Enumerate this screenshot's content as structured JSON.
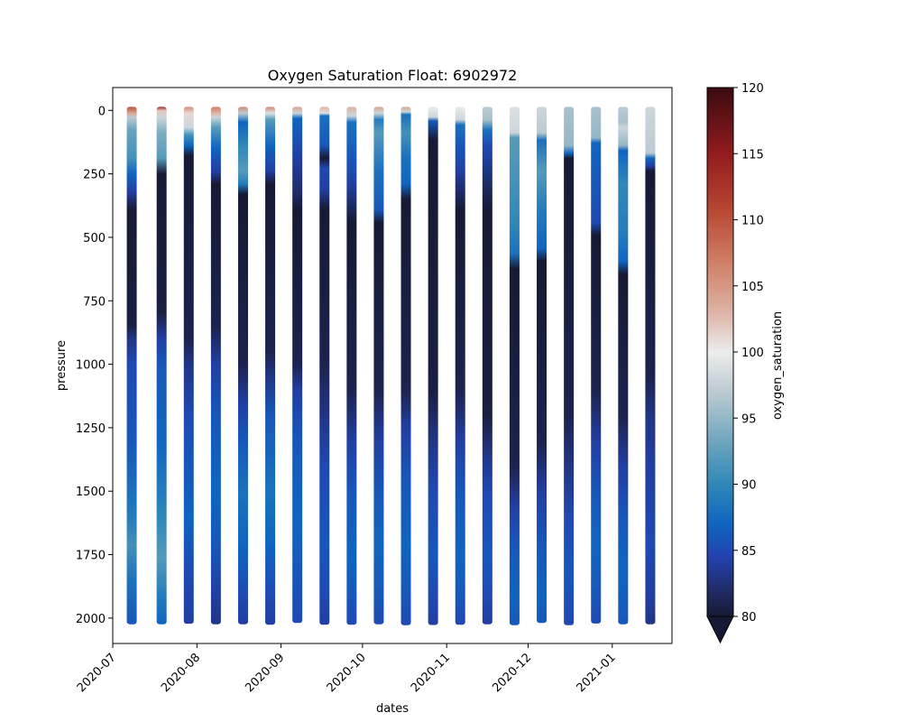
{
  "chart_data": {
    "type": "scatter",
    "title": "Oxygen Saturation Float: 6902972",
    "xlabel": "dates",
    "ylabel": "pressure",
    "colorbar_label": "oxygen_saturation",
    "xlim": [
      "2020-07-01",
      "2021-01-23"
    ],
    "ylim": [
      2100,
      -90
    ],
    "y_inverted": true,
    "x_ticks": [
      "2020-07-01",
      "2020-08-01",
      "2020-09-01",
      "2020-10-01",
      "2020-11-01",
      "2020-12-01",
      "2021-01-01"
    ],
    "x_tick_labels": [
      "2020-07",
      "2020-08",
      "2020-09",
      "2020-10",
      "2020-11",
      "2020-12",
      "2021-01"
    ],
    "y_ticks": [
      0,
      250,
      500,
      750,
      1000,
      1250,
      1500,
      1750,
      2000
    ],
    "colorbar_ticks": [
      80,
      85,
      90,
      95,
      100,
      105,
      110,
      115,
      120
    ],
    "color_range": [
      80,
      120
    ],
    "colorbar_extend": "min",
    "colormap_stops": [
      {
        "v": 80,
        "color": "#161a34"
      },
      {
        "v": 82,
        "color": "#202c68"
      },
      {
        "v": 84.5,
        "color": "#2342b0"
      },
      {
        "v": 87,
        "color": "#0f65c0"
      },
      {
        "v": 90,
        "color": "#2f88b8"
      },
      {
        "v": 93,
        "color": "#6aa3bd"
      },
      {
        "v": 97,
        "color": "#bccbd2"
      },
      {
        "v": 100,
        "color": "#ececec"
      },
      {
        "v": 103,
        "color": "#deb3a5"
      },
      {
        "v": 107,
        "color": "#cf7c63"
      },
      {
        "v": 111,
        "color": "#b54430"
      },
      {
        "v": 115,
        "color": "#921b1e"
      },
      {
        "v": 120,
        "color": "#3a0b0f"
      }
    ],
    "profiles": [
      {
        "date": "2020-07-08",
        "max_pressure": 2010,
        "levels": [
          [
            0,
            110
          ],
          [
            25,
            104
          ],
          [
            40,
            97
          ],
          [
            90,
            93
          ],
          [
            200,
            91
          ],
          [
            260,
            87
          ],
          [
            330,
            84
          ],
          [
            400,
            80
          ],
          [
            850,
            80.5
          ],
          [
            900,
            83
          ],
          [
            1000,
            85
          ],
          [
            1300,
            86
          ],
          [
            1500,
            88
          ],
          [
            1600,
            89
          ],
          [
            1700,
            91
          ],
          [
            1850,
            88
          ],
          [
            2010,
            86
          ]
        ]
      },
      {
        "date": "2020-07-19",
        "max_pressure": 2010,
        "levels": [
          [
            0,
            114
          ],
          [
            15,
            102
          ],
          [
            40,
            98
          ],
          [
            100,
            94
          ],
          [
            200,
            92
          ],
          [
            260,
            80
          ],
          [
            800,
            80.5
          ],
          [
            900,
            84
          ],
          [
            1000,
            86
          ],
          [
            1300,
            87
          ],
          [
            1400,
            88
          ],
          [
            1600,
            90
          ],
          [
            1750,
            92
          ],
          [
            1900,
            89
          ],
          [
            2010,
            87
          ]
        ]
      },
      {
        "date": "2020-07-29",
        "max_pressure": 2008,
        "levels": [
          [
            0,
            106
          ],
          [
            25,
            101
          ],
          [
            80,
            98
          ],
          [
            110,
            91
          ],
          [
            150,
            87
          ],
          [
            190,
            80
          ],
          [
            900,
            81
          ],
          [
            1000,
            83
          ],
          [
            1200,
            85
          ],
          [
            1400,
            86
          ],
          [
            1600,
            87
          ],
          [
            1800,
            85
          ],
          [
            2008,
            84
          ]
        ]
      },
      {
        "date": "2020-08-08",
        "max_pressure": 2010,
        "levels": [
          [
            0,
            107
          ],
          [
            25,
            103
          ],
          [
            40,
            98
          ],
          [
            80,
            92
          ],
          [
            160,
            87
          ],
          [
            250,
            84
          ],
          [
            300,
            80
          ],
          [
            850,
            81
          ],
          [
            1000,
            84
          ],
          [
            1200,
            86
          ],
          [
            1500,
            87
          ],
          [
            1700,
            86
          ],
          [
            1900,
            84
          ],
          [
            2010,
            83
          ]
        ]
      },
      {
        "date": "2020-08-18",
        "max_pressure": 2010,
        "levels": [
          [
            0,
            106
          ],
          [
            25,
            97
          ],
          [
            60,
            87
          ],
          [
            150,
            90
          ],
          [
            250,
            92
          ],
          [
            300,
            89
          ],
          [
            340,
            80
          ],
          [
            1000,
            81
          ],
          [
            1150,
            84
          ],
          [
            1300,
            86
          ],
          [
            1500,
            88
          ],
          [
            1700,
            87
          ],
          [
            1900,
            85
          ],
          [
            2010,
            84
          ]
        ]
      },
      {
        "date": "2020-08-28",
        "max_pressure": 2012,
        "levels": [
          [
            0,
            106
          ],
          [
            25,
            99
          ],
          [
            50,
            92
          ],
          [
            150,
            87
          ],
          [
            250,
            84
          ],
          [
            300,
            80
          ],
          [
            950,
            81
          ],
          [
            1050,
            83
          ],
          [
            1200,
            86
          ],
          [
            1500,
            88
          ],
          [
            1700,
            87
          ],
          [
            1900,
            85
          ],
          [
            2012,
            84
          ]
        ]
      },
      {
        "date": "2020-09-07",
        "max_pressure": 2005,
        "levels": [
          [
            0,
            104
          ],
          [
            25,
            98
          ],
          [
            45,
            87
          ],
          [
            200,
            84
          ],
          [
            330,
            82
          ],
          [
            400,
            80
          ],
          [
            1000,
            81
          ],
          [
            1100,
            84
          ],
          [
            1300,
            86
          ],
          [
            1600,
            87
          ],
          [
            1800,
            86
          ],
          [
            2005,
            85
          ]
        ]
      },
      {
        "date": "2020-09-17",
        "max_pressure": 2012,
        "levels": [
          [
            0,
            103
          ],
          [
            25,
            99
          ],
          [
            35,
            88
          ],
          [
            150,
            86
          ],
          [
            200,
            80
          ],
          [
            240,
            85
          ],
          [
            320,
            84
          ],
          [
            400,
            80
          ],
          [
            1000,
            81
          ],
          [
            1200,
            83
          ],
          [
            1400,
            85
          ],
          [
            1700,
            86
          ],
          [
            1900,
            85
          ],
          [
            2012,
            84
          ]
        ]
      },
      {
        "date": "2020-09-27",
        "max_pressure": 2012,
        "levels": [
          [
            0,
            103
          ],
          [
            35,
            98
          ],
          [
            60,
            88
          ],
          [
            200,
            86
          ],
          [
            300,
            84
          ],
          [
            450,
            80
          ],
          [
            1100,
            81
          ],
          [
            1300,
            84
          ],
          [
            1500,
            86
          ],
          [
            1750,
            87
          ],
          [
            1900,
            86
          ],
          [
            2012,
            85
          ]
        ]
      },
      {
        "date": "2020-10-07",
        "max_pressure": 2010,
        "levels": [
          [
            0,
            104
          ],
          [
            25,
            98
          ],
          [
            50,
            89
          ],
          [
            100,
            92
          ],
          [
            250,
            88
          ],
          [
            400,
            86
          ],
          [
            450,
            80
          ],
          [
            1100,
            81
          ],
          [
            1300,
            84
          ],
          [
            1500,
            86
          ],
          [
            1700,
            87
          ],
          [
            1900,
            86
          ],
          [
            2010,
            85
          ]
        ]
      },
      {
        "date": "2020-10-17",
        "max_pressure": 2014,
        "levels": [
          [
            0,
            104
          ],
          [
            20,
            98
          ],
          [
            30,
            88
          ],
          [
            100,
            91
          ],
          [
            200,
            88
          ],
          [
            300,
            87
          ],
          [
            360,
            80
          ],
          [
            1100,
            81
          ],
          [
            1250,
            84
          ],
          [
            1450,
            86
          ],
          [
            1700,
            87
          ],
          [
            1900,
            86
          ],
          [
            2014,
            85
          ]
        ]
      },
      {
        "date": "2020-10-27",
        "max_pressure": 2013,
        "levels": [
          [
            0,
            100
          ],
          [
            40,
            98
          ],
          [
            55,
            86
          ],
          [
            130,
            80
          ],
          [
            1100,
            80.5
          ],
          [
            1300,
            83
          ],
          [
            1500,
            85
          ],
          [
            1750,
            86
          ],
          [
            1900,
            85
          ],
          [
            2013,
            84
          ]
        ]
      },
      {
        "date": "2020-11-06",
        "max_pressure": 2012,
        "levels": [
          [
            0,
            100
          ],
          [
            50,
            98
          ],
          [
            70,
            88
          ],
          [
            150,
            86
          ],
          [
            250,
            84
          ],
          [
            400,
            80
          ],
          [
            1100,
            81
          ],
          [
            1300,
            84
          ],
          [
            1500,
            86
          ],
          [
            1750,
            87
          ],
          [
            1900,
            86
          ],
          [
            2012,
            85
          ]
        ]
      },
      {
        "date": "2020-11-16",
        "max_pressure": 2010,
        "levels": [
          [
            0,
            97
          ],
          [
            50,
            96
          ],
          [
            90,
            88
          ],
          [
            150,
            85
          ],
          [
            400,
            80
          ],
          [
            1200,
            80.5
          ],
          [
            1350,
            83
          ],
          [
            1500,
            85
          ],
          [
            1750,
            86
          ],
          [
            1900,
            85
          ],
          [
            2010,
            84
          ]
        ]
      },
      {
        "date": "2020-11-26",
        "max_pressure": 2014,
        "levels": [
          [
            0,
            99
          ],
          [
            100,
            98
          ],
          [
            120,
            92
          ],
          [
            300,
            91
          ],
          [
            450,
            90
          ],
          [
            570,
            88
          ],
          [
            630,
            80
          ],
          [
            1400,
            81
          ],
          [
            1550,
            84
          ],
          [
            1700,
            86
          ],
          [
            1900,
            87
          ],
          [
            2014,
            86
          ]
        ]
      },
      {
        "date": "2020-12-06",
        "max_pressure": 2005,
        "levels": [
          [
            0,
            98
          ],
          [
            100,
            97
          ],
          [
            130,
            88
          ],
          [
            250,
            92
          ],
          [
            400,
            89
          ],
          [
            550,
            87
          ],
          [
            600,
            80
          ],
          [
            1300,
            81
          ],
          [
            1500,
            84
          ],
          [
            1700,
            86
          ],
          [
            1900,
            87
          ],
          [
            2005,
            86
          ]
        ]
      },
      {
        "date": "2020-12-16",
        "max_pressure": 2014,
        "levels": [
          [
            0,
            96
          ],
          [
            150,
            95
          ],
          [
            180,
            87
          ],
          [
            200,
            80
          ],
          [
            1200,
            81
          ],
          [
            1400,
            83
          ],
          [
            1600,
            85
          ],
          [
            1800,
            86
          ],
          [
            2014,
            85
          ]
        ]
      },
      {
        "date": "2020-12-26",
        "max_pressure": 2007,
        "levels": [
          [
            0,
            96
          ],
          [
            120,
            95
          ],
          [
            140,
            87
          ],
          [
            300,
            86
          ],
          [
            450,
            85
          ],
          [
            500,
            80
          ],
          [
            1100,
            81
          ],
          [
            1300,
            84
          ],
          [
            1500,
            86
          ],
          [
            1700,
            87
          ],
          [
            1900,
            86
          ],
          [
            2007,
            85
          ]
        ]
      },
      {
        "date": "2021-01-05",
        "max_pressure": 2010,
        "levels": [
          [
            0,
            97
          ],
          [
            60,
            96
          ],
          [
            80,
            98
          ],
          [
            150,
            95
          ],
          [
            170,
            87
          ],
          [
            300,
            90
          ],
          [
            500,
            89
          ],
          [
            600,
            87
          ],
          [
            650,
            80
          ],
          [
            1200,
            81
          ],
          [
            1400,
            84
          ],
          [
            1600,
            86
          ],
          [
            1800,
            87
          ],
          [
            2010,
            86
          ]
        ]
      },
      {
        "date": "2021-01-15",
        "max_pressure": 2010,
        "levels": [
          [
            0,
            98
          ],
          [
            180,
            97
          ],
          [
            200,
            87
          ],
          [
            230,
            84
          ],
          [
            250,
            80
          ],
          [
            1050,
            81
          ],
          [
            1200,
            83
          ],
          [
            1400,
            84
          ],
          [
            1700,
            85
          ],
          [
            1900,
            84
          ],
          [
            2010,
            83
          ]
        ]
      }
    ]
  }
}
